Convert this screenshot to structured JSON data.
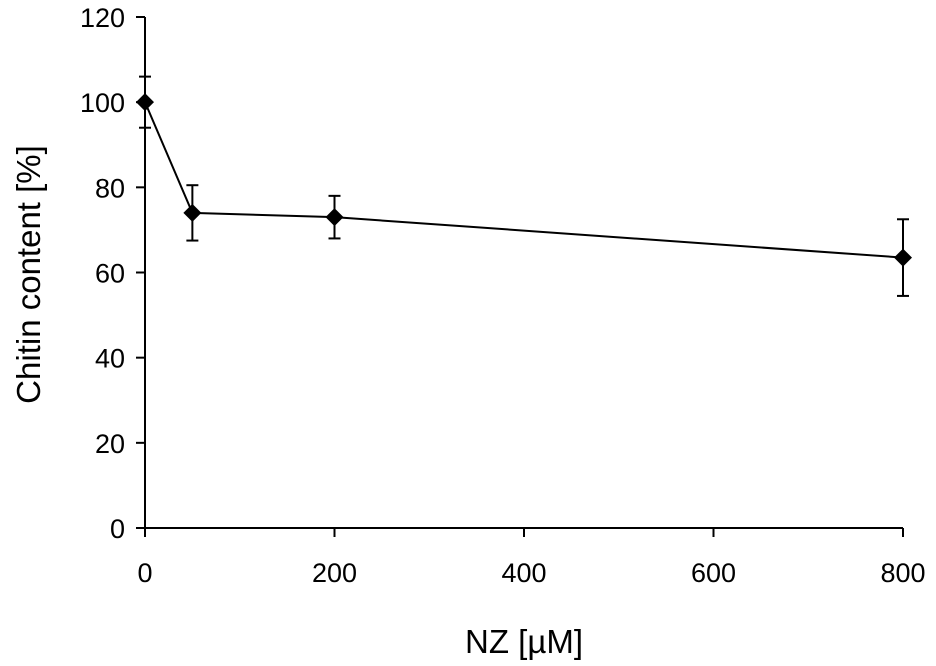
{
  "chart_data": {
    "type": "line",
    "xlabel": "NZ [µM]",
    "ylabel": "Chitin content [%]",
    "xlim": [
      0,
      800
    ],
    "ylim": [
      0,
      120
    ],
    "xticks": [
      0,
      200,
      400,
      600,
      800
    ],
    "yticks": [
      0,
      20,
      40,
      60,
      80,
      100,
      120
    ],
    "grid": false,
    "series": [
      {
        "x": [
          0,
          50,
          200,
          800
        ],
        "y": [
          100,
          74,
          73,
          63.5
        ],
        "error": [
          6,
          6.5,
          5,
          9
        ],
        "marker": "diamond",
        "color": "#000000"
      }
    ]
  }
}
